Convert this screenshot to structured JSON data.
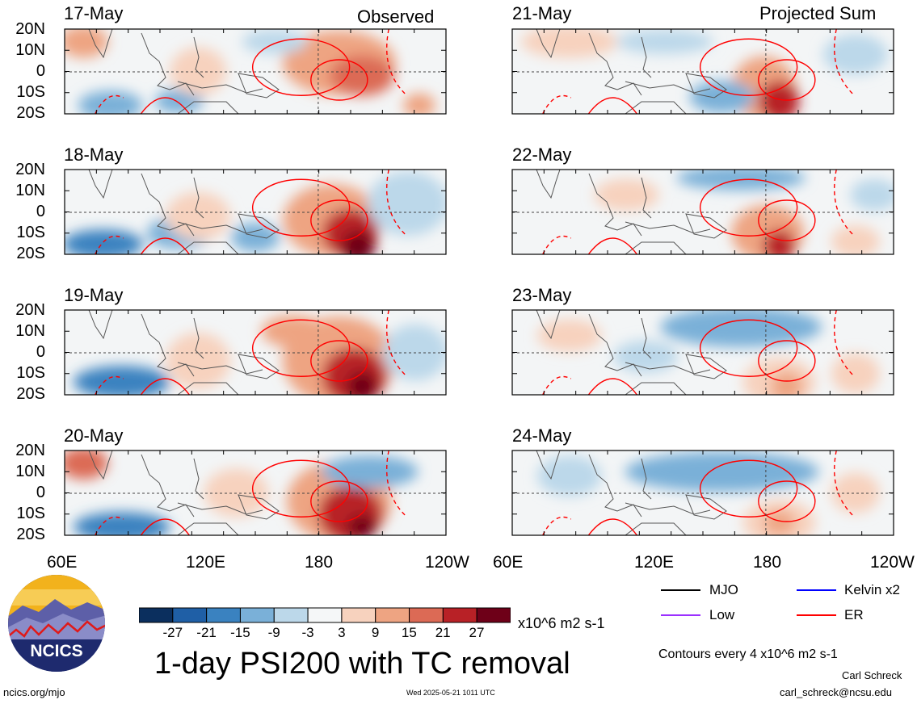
{
  "panels": [
    {
      "id": "p17",
      "date": "17-May",
      "corner": "Observed"
    },
    {
      "id": "p18",
      "date": "18-May",
      "corner": ""
    },
    {
      "id": "p19",
      "date": "19-May",
      "corner": ""
    },
    {
      "id": "p20",
      "date": "20-May",
      "corner": ""
    },
    {
      "id": "p21",
      "date": "21-May",
      "corner": "Projected Sum"
    },
    {
      "id": "p22",
      "date": "22-May",
      "corner": ""
    },
    {
      "id": "p23",
      "date": "23-May",
      "corner": ""
    },
    {
      "id": "p24",
      "date": "24-May",
      "corner": ""
    }
  ],
  "lat_labels": [
    "20N",
    "10N",
    "0",
    "10S",
    "20S"
  ],
  "lon_labels": [
    "60E",
    "120E",
    "180",
    "120W"
  ],
  "colorbar": {
    "ticks": [
      "-27",
      "-21",
      "-15",
      "-9",
      "-3",
      "3",
      "9",
      "15",
      "21",
      "27"
    ],
    "colors": [
      "#0b2f5e",
      "#1f5fa6",
      "#3a82c0",
      "#7ab0d8",
      "#bcd8ea",
      "#f5f7f8",
      "#f7d2be",
      "#eea482",
      "#dc6a55",
      "#b82126",
      "#6e0018"
    ],
    "unit": "x10^6 m2 s-1"
  },
  "title": "1-day PSI200 with TC removal",
  "legend": {
    "items": [
      {
        "label": "MJO",
        "color": "#000000"
      },
      {
        "label": "Kelvin x2",
        "color": "#0000ff"
      },
      {
        "label": "Low",
        "color": "#9b30ff"
      },
      {
        "label": "ER",
        "color": "#ff0000"
      }
    ],
    "contours_note": "Contours every 4 x10^6 m2 s-1"
  },
  "logo": {
    "text": "NCICS"
  },
  "footer": {
    "left": "ncics.org/mjo",
    "center": "Wed 2025-05-21 1011 UTC",
    "author": "Carl Schreck",
    "email": "carl_schreck@ncsu.edu"
  }
}
